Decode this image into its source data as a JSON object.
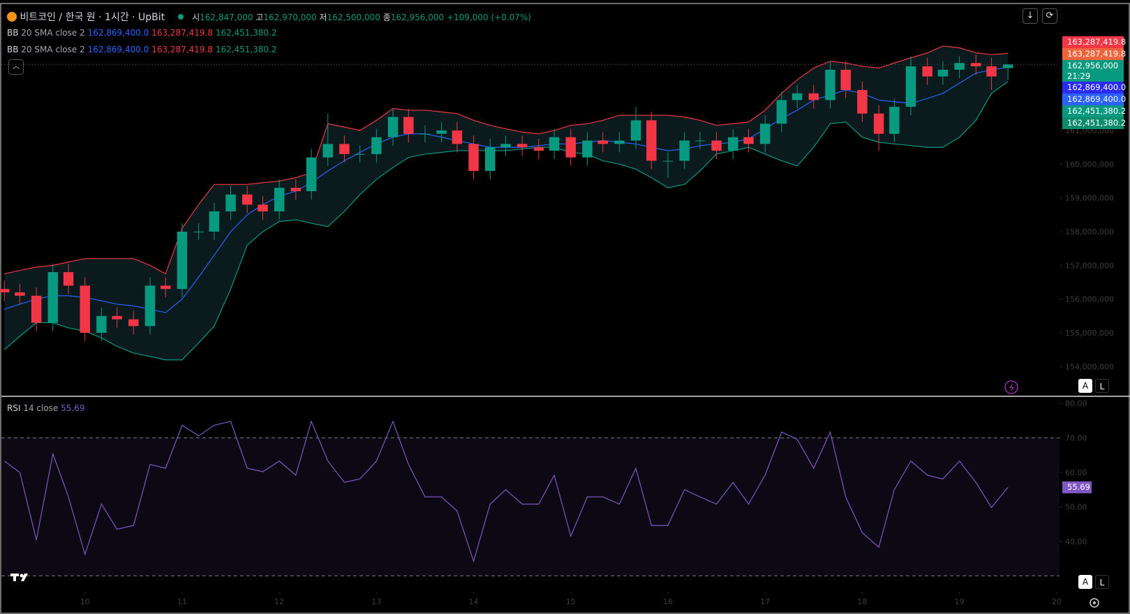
{
  "header": {
    "symbol": "비트코인 / 한국 원 · 1시간 · UpBit",
    "ohlc": [
      {
        "key": "시",
        "value": "162,847,000"
      },
      {
        "key": "고",
        "value": "162,970,000"
      },
      {
        "key": "저",
        "value": "162,500,000"
      },
      {
        "key": "종",
        "value": "162,956,000"
      }
    ],
    "change": "+109,000 (+0.07%)"
  },
  "indicators": [
    {
      "name": "BB",
      "params": "20 SMA close 2",
      "middle": "162,869,400.0",
      "upper": "163,287,419.8",
      "lower": "162,451,380.2"
    },
    {
      "name": "BB",
      "params": "20 SMA close 2",
      "middle": "162,869,400.0",
      "upper": "163,287,419.8",
      "lower": "162,451,380.2"
    }
  ],
  "price_badges": [
    {
      "label": "163,287,419.8",
      "color": "#f23645"
    },
    {
      "label": "163,287,419.8",
      "color": "#f0643c"
    },
    {
      "label": "162,956,000",
      "sub": "21:29",
      "color": "#089981"
    },
    {
      "label": "162,869,400.0",
      "color": "#2b2bf0"
    },
    {
      "label": "162,869,400.0",
      "color": "#2962ff"
    },
    {
      "label": "162,451,380.2",
      "color": "#089981"
    },
    {
      "label": "162,451,380.2",
      "color": "#0a8c6c"
    }
  ],
  "rsi_legend": {
    "name": "RSI",
    "params": "14 close",
    "value": "55.69"
  },
  "rsi_badge": "55.69",
  "scale_buttons": [
    "A",
    "L"
  ],
  "chart_data": [
    {
      "type": "candlestick",
      "up_color": "#089981",
      "down_color": "#f23645",
      "x": [
        9.17,
        9.33,
        9.5,
        9.67,
        9.83,
        10,
        10.17,
        10.33,
        10.5,
        10.67,
        10.83,
        11,
        11.17,
        11.33,
        11.5,
        11.67,
        11.83,
        12,
        12.17,
        12.33,
        12.5,
        12.67,
        12.83,
        13,
        13.17,
        13.33,
        13.5,
        13.67,
        13.83,
        14,
        14.17,
        14.33,
        14.5,
        14.67,
        14.83,
        15,
        15.17,
        15.33,
        15.5,
        15.67,
        15.83,
        16,
        16.17,
        16.33,
        16.5,
        16.67,
        16.83,
        17,
        17.17,
        17.33,
        17.5,
        17.67,
        17.83,
        18,
        18.17,
        18.33,
        18.5,
        18.67,
        18.83,
        19,
        19.17,
        19.33,
        19.5
      ],
      "open": [
        156300000.0,
        156200000.0,
        156100000.0,
        155300000.0,
        156800000.0,
        156400000.0,
        155000000.0,
        155500000.0,
        155400000.0,
        155200000.0,
        156400000.0,
        156300000.0,
        158000000.0,
        158000000.0,
        158600000.0,
        159100000.0,
        158800000.0,
        158600000.0,
        159300000.0,
        159200000.0,
        160200000.0,
        160600000.0,
        160300000.0,
        160300000.0,
        160800000.0,
        161400000.0,
        160900000.0,
        160900000.0,
        161000000.0,
        160600000.0,
        159800000.0,
        160500000.0,
        160600000.0,
        160500000.0,
        160400000.0,
        160800000.0,
        160200000.0,
        160700000.0,
        160600000.0,
        160700000.0,
        161300000.0,
        160100000.0,
        160100000.0,
        160700000.0,
        160700000.0,
        160400000.0,
        160800000.0,
        160600000.0,
        161200000.0,
        161900000.0,
        162100000.0,
        161900000.0,
        162800000.0,
        162200000.0,
        161500000.0,
        160900000.0,
        161700000.0,
        162900000.0,
        162600000.0,
        162800000.0,
        163000000.0,
        162900000.0,
        162847000.0
      ],
      "high": [
        156550000.0,
        156450000.0,
        156350000.0,
        157050000.0,
        157050000.0,
        156650000.0,
        155750000.0,
        155750000.0,
        155650000.0,
        156650000.0,
        156650000.0,
        158250000.0,
        158250000.0,
        158850000.0,
        159350000.0,
        159350000.0,
        159050000.0,
        159550000.0,
        159550000.0,
        160450000.0,
        161500000.0,
        160850000.0,
        160550000.0,
        161050000.0,
        161650000.0,
        161650000.0,
        161150000.0,
        161250000.0,
        161250000.0,
        160850000.0,
        160750000.0,
        160850000.0,
        160850000.0,
        160750000.0,
        161050000.0,
        161050000.0,
        160950000.0,
        160950000.0,
        160950000.0,
        161700000.0,
        161550000.0,
        160350000.0,
        160950000.0,
        160950000.0,
        160950000.0,
        161050000.0,
        161050000.0,
        161450000.0,
        162150000.0,
        162350000.0,
        162350000.0,
        163050000.0,
        163050000.0,
        162450000.0,
        161750000.0,
        161950000.0,
        163200000.0,
        163150000.0,
        163050000.0,
        163200000.0,
        163250000.0,
        163150000.0,
        162970000.0
      ],
      "low": [
        155950000.0,
        155850000.0,
        155050000.0,
        155050000.0,
        156150000.0,
        154750000.0,
        154750000.0,
        155150000.0,
        154950000.0,
        154950000.0,
        156050000.0,
        156050000.0,
        157750000.0,
        157750000.0,
        158350000.0,
        158550000.0,
        158350000.0,
        158350000.0,
        158950000.0,
        158950000.0,
        159950000.0,
        160050000.0,
        160050000.0,
        160050000.0,
        160550000.0,
        160650000.0,
        160650000.0,
        160650000.0,
        160350000.0,
        159550000.0,
        159550000.0,
        160250000.0,
        160250000.0,
        160150000.0,
        160150000.0,
        159950000.0,
        159950000.0,
        160350000.0,
        160350000.0,
        160450000.0,
        159850000.0,
        159600000.0,
        159850000.0,
        160450000.0,
        160150000.0,
        160150000.0,
        160350000.0,
        160350000.0,
        160950000.0,
        161650000.0,
        161650000.0,
        161650000.0,
        161950000.0,
        161250000.0,
        160400000.0,
        160650000.0,
        161450000.0,
        162350000.0,
        162350000.0,
        162550000.0,
        162650000.0,
        162200000.0,
        162500000.0
      ],
      "close": [
        156200000.0,
        156100000.0,
        155300000.0,
        156800000.0,
        156400000.0,
        155000000.0,
        155500000.0,
        155400000.0,
        155200000.0,
        156400000.0,
        156300000.0,
        158000000.0,
        158000000.0,
        158600000.0,
        159100000.0,
        158800000.0,
        158600000.0,
        159300000.0,
        159200000.0,
        160200000.0,
        160600000.0,
        160300000.0,
        160300000.0,
        160800000.0,
        161400000.0,
        160900000.0,
        160900000.0,
        161000000.0,
        160600000.0,
        159800000.0,
        160500000.0,
        160600000.0,
        160500000.0,
        160400000.0,
        160800000.0,
        160200000.0,
        160700000.0,
        160600000.0,
        160700000.0,
        161300000.0,
        160100000.0,
        160100000.0,
        160700000.0,
        160700000.0,
        160400000.0,
        160800000.0,
        160600000.0,
        161200000.0,
        161900000.0,
        162100000.0,
        161900000.0,
        162800000.0,
        162200000.0,
        161500000.0,
        160900000.0,
        161700000.0,
        162900000.0,
        162600000.0,
        162800000.0,
        163000000.0,
        162900000.0,
        162600000.0,
        162956000.0
      ],
      "bands": {
        "upper": {
          "color": "#f23645",
          "values": [
            156750000.0,
            156850000.0,
            156950000.0,
            157000000.0,
            157100000.0,
            157200000.0,
            157200000.0,
            157200000.0,
            157200000.0,
            157000000.0,
            156750000.0,
            158100000.0,
            158800000.0,
            159400000.0,
            159400000.0,
            159400000.0,
            159450000.0,
            159500000.0,
            159600000.0,
            159750000.0,
            161200000.0,
            161100000.0,
            161000000.0,
            161300000.0,
            161650000.0,
            161600000.0,
            161600000.0,
            161550000.0,
            161500000.0,
            161300000.0,
            161150000.0,
            161050000.0,
            160950000.0,
            160900000.0,
            161000000.0,
            161150000.0,
            161200000.0,
            161300000.0,
            161450000.0,
            161450000.0,
            161450000.0,
            161450000.0,
            161400000.0,
            161300000.0,
            161150000.0,
            161200000.0,
            161250000.0,
            161600000.0,
            162100000.0,
            162500000.0,
            162850000.0,
            163050000.0,
            163000000.0,
            162900000.0,
            162850000.0,
            163000000.0,
            163150000.0,
            163300000.0,
            163500000.0,
            163450000.0,
            163300000.0,
            163250000.0,
            163287419.8
          ]
        },
        "middle": {
          "color": "#2962ff",
          "values": [
            155700000.0,
            155850000.0,
            156000000.0,
            156100000.0,
            156100000.0,
            156050000.0,
            155950000.0,
            155850000.0,
            155800000.0,
            155700000.0,
            155600000.0,
            156000000.0,
            156650000.0,
            157300000.0,
            158000000.0,
            158500000.0,
            158800000.0,
            159050000.0,
            159200000.0,
            159450000.0,
            159800000.0,
            160100000.0,
            160350000.0,
            160600000.0,
            160800000.0,
            160900000.0,
            160900000.0,
            160800000.0,
            160700000.0,
            160600000.0,
            160500000.0,
            160500000.0,
            160500000.0,
            160550000.0,
            160600000.0,
            160600000.0,
            160650000.0,
            160700000.0,
            160650000.0,
            160600000.0,
            160500000.0,
            160400000.0,
            160450000.0,
            160550000.0,
            160600000.0,
            160650000.0,
            160750000.0,
            161050000.0,
            161350000.0,
            161600000.0,
            161900000.0,
            162050000.0,
            162200000.0,
            162100000.0,
            161900000.0,
            161850000.0,
            161800000.0,
            161950000.0,
            162100000.0,
            162400000.0,
            162700000.0,
            162800000.0,
            162869400.0
          ]
        },
        "lower": {
          "color": "#089981",
          "values": [
            154500000.0,
            154900000.0,
            155300000.0,
            155300000.0,
            155150000.0,
            155050000.0,
            154850000.0,
            154600000.0,
            154400000.0,
            154300000.0,
            154200000.0,
            154200000.0,
            154700000.0,
            155200000.0,
            156300000.0,
            157600000.0,
            158000000.0,
            158300000.0,
            158350000.0,
            158250000.0,
            158150000.0,
            158600000.0,
            159100000.0,
            159550000.0,
            159900000.0,
            160200000.0,
            160300000.0,
            160350000.0,
            160400000.0,
            160400000.0,
            160400000.0,
            160400000.0,
            160450000.0,
            160500000.0,
            160500000.0,
            160350000.0,
            160300000.0,
            160100000.0,
            160000000.0,
            159850000.0,
            159600000.0,
            159300000.0,
            159400000.0,
            159800000.0,
            160300000.0,
            160400000.0,
            160500000.0,
            160300000.0,
            160100000.0,
            159950000.0,
            160500000.0,
            161200000.0,
            161250000.0,
            160800000.0,
            160650000.0,
            160600000.0,
            160550000.0,
            160500000.0,
            160500000.0,
            160800000.0,
            161300000.0,
            162100000.0,
            162451380.2
          ]
        },
        "fill": "#0b1a1d"
      },
      "last_price": 162956000.0,
      "xlim": [
        9.14,
        20.03
      ],
      "xticks": [
        10,
        11,
        12,
        13,
        14,
        15,
        16,
        17,
        18,
        19,
        20
      ],
      "ylim": [
        153160000.0,
        164660000.0
      ],
      "yticks": [
        {
          "value": 154000000,
          "label": "154,000,000"
        },
        {
          "value": 155000000,
          "label": "155,000,000"
        },
        {
          "value": 156000000,
          "label": "156,000,000"
        },
        {
          "value": 157000000,
          "label": "157,000,000"
        },
        {
          "value": 158000000,
          "label": "158,000,000"
        },
        {
          "value": 159000000,
          "label": "159,000,000"
        },
        {
          "value": 160000000,
          "label": "160,000,000"
        },
        {
          "value": 161000000,
          "label": "161,000,000"
        }
      ]
    },
    {
      "type": "line",
      "color": "#7e57c2",
      "x": [
        9.17,
        9.33,
        9.5,
        9.67,
        9.83,
        10,
        10.17,
        10.33,
        10.5,
        10.67,
        10.83,
        11,
        11.17,
        11.33,
        11.5,
        11.67,
        11.83,
        12,
        12.17,
        12.33,
        12.5,
        12.67,
        12.83,
        13,
        13.17,
        13.33,
        13.5,
        13.67,
        13.83,
        14,
        14.17,
        14.33,
        14.5,
        14.67,
        14.83,
        15,
        15.17,
        15.33,
        15.5,
        15.67,
        15.83,
        16,
        16.17,
        16.33,
        16.5,
        16.67,
        16.83,
        17,
        17.17,
        17.33,
        17.5,
        17.67,
        17.83,
        18,
        18.17,
        18.33,
        18.5,
        18.67,
        18.83,
        19,
        19.17,
        19.33,
        19.5
      ],
      "values": [
        63.3,
        60,
        40.4,
        65.4,
        52.9,
        36.2,
        50.8,
        43.5,
        44.6,
        62.3,
        61.2,
        73.7,
        70.6,
        73.7,
        74.8,
        61.2,
        60.2,
        63.3,
        59.2,
        74.8,
        63.3,
        57.1,
        58.1,
        63.3,
        74.8,
        62.3,
        52.9,
        52.9,
        48.8,
        34.2,
        50.8,
        55,
        50.8,
        50.8,
        59.2,
        41.5,
        52.9,
        52.9,
        50.8,
        61.2,
        44.6,
        44.6,
        55,
        52.9,
        50.8,
        57.1,
        50.8,
        59.2,
        71.7,
        69.6,
        61.2,
        71.7,
        52.9,
        42.5,
        38.3,
        55,
        63.3,
        59.2,
        58.1,
        63.3,
        57.1,
        49.8,
        55.69
      ],
      "upper_band": 70,
      "lower_band": 30,
      "band_fill": "rgba(126,87,194,0.1)",
      "xlim": [
        9.14,
        20.03
      ],
      "ylim": [
        25.8,
        81.67
      ],
      "yticks": [
        {
          "value": 40,
          "label": "40.00"
        },
        {
          "value": 50,
          "label": "50.00"
        },
        {
          "value": 60,
          "label": "60.00"
        },
        {
          "value": 70,
          "label": "70.00"
        },
        {
          "value": 80,
          "label": "80.00"
        }
      ]
    }
  ]
}
